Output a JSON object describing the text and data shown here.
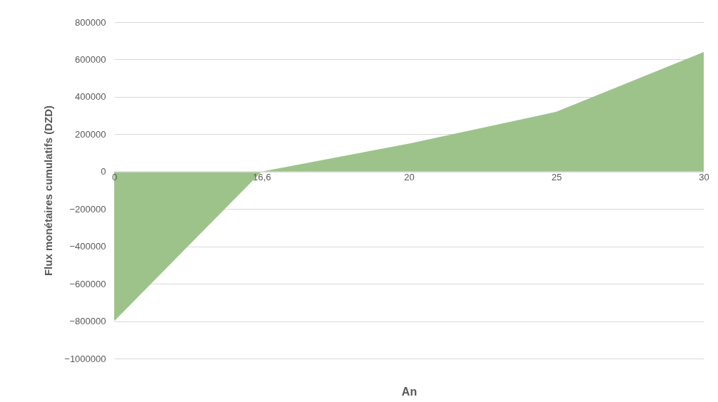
{
  "chart_data": {
    "type": "area",
    "xlabel": "An",
    "ylabel": "Flux monétaires cumulatifs (DZD)",
    "categories": [
      "0",
      "16,6",
      "20",
      "25",
      "30"
    ],
    "series": [
      {
        "color": "#9dc38a",
        "values": [
          -800000,
          0,
          150000,
          320000,
          640000
        ]
      }
    ],
    "ylim": [
      -1000000,
      800000
    ],
    "yticks": [
      -1000000,
      -800000,
      -600000,
      -400000,
      -200000,
      0,
      200000,
      400000,
      600000,
      800000
    ],
    "grid": "y"
  }
}
